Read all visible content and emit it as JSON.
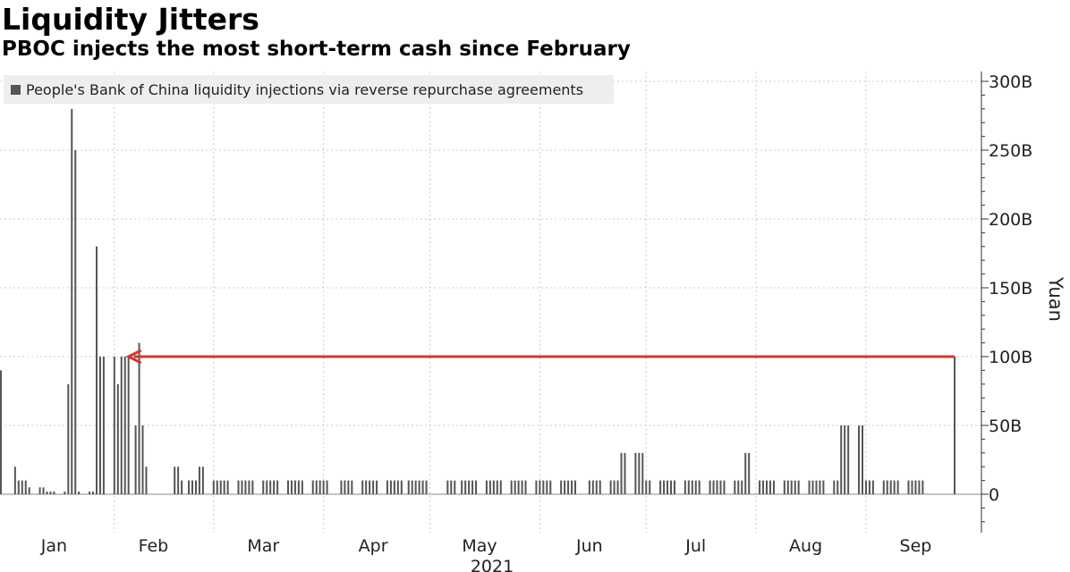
{
  "header": {
    "title": "Liquidity Jitters",
    "subtitle": "PBOC injects the most short-term cash since February"
  },
  "colors": {
    "bar": "#555555",
    "grid": "#cccccc",
    "annotation_arrow": "#d03a2f",
    "legend_bg": "#eeeeee"
  },
  "chart_data": {
    "type": "bar",
    "legend": [
      {
        "name": "People's Bank of China liquidity injections via reverse repurchase agreements",
        "placement": "top-left"
      }
    ],
    "ylabel": "Yuan",
    "xlabel": "2021",
    "y_axis_side": "right",
    "ylim": [
      -25,
      310
    ],
    "y_ticks": [
      0,
      50,
      100,
      150,
      200,
      250,
      300
    ],
    "y_tick_labels": [
      "0",
      "50B",
      "100B",
      "150B",
      "200B",
      "250B",
      "300B"
    ],
    "x_domain": [
      "2020-12-31",
      "2021-09-27"
    ],
    "x_ticks": [
      {
        "label": "Jan",
        "date": "2021-01-15"
      },
      {
        "label": "Feb",
        "date": "2021-02-12"
      },
      {
        "label": "Mar",
        "date": "2021-03-15"
      },
      {
        "label": "Apr",
        "date": "2021-04-15"
      },
      {
        "label": "May",
        "date": "2021-05-15"
      },
      {
        "label": "Jun",
        "date": "2021-06-15"
      },
      {
        "label": "Jul",
        "date": "2021-07-15"
      },
      {
        "label": "Aug",
        "date": "2021-08-15"
      },
      {
        "label": "Sep",
        "date": "2021-09-15"
      }
    ],
    "x_gridlines": [
      "2021-02-01",
      "2021-03-01",
      "2021-04-01",
      "2021-05-01",
      "2021-06-01",
      "2021-07-01",
      "2021-08-01",
      "2021-09-01"
    ],
    "grid": true,
    "annotation": {
      "type": "arrow",
      "y": 100,
      "from_date": "2021-09-26",
      "to_date": "2021-02-05"
    },
    "series": [
      {
        "name": "People's Bank of China liquidity injections via reverse repurchase agreements",
        "points": [
          [
            "2020-12-31",
            90
          ],
          [
            "2021-01-04",
            20
          ],
          [
            "2021-01-05",
            10
          ],
          [
            "2021-01-06",
            10
          ],
          [
            "2021-01-07",
            10
          ],
          [
            "2021-01-08",
            5
          ],
          [
            "2021-01-11",
            5
          ],
          [
            "2021-01-12",
            5
          ],
          [
            "2021-01-13",
            2
          ],
          [
            "2021-01-14",
            2
          ],
          [
            "2021-01-15",
            2
          ],
          [
            "2021-01-18",
            2
          ],
          [
            "2021-01-19",
            80
          ],
          [
            "2021-01-20",
            280
          ],
          [
            "2021-01-21",
            250
          ],
          [
            "2021-01-22",
            2
          ],
          [
            "2021-01-25",
            2
          ],
          [
            "2021-01-26",
            2
          ],
          [
            "2021-01-27",
            180
          ],
          [
            "2021-01-28",
            100
          ],
          [
            "2021-01-29",
            100
          ],
          [
            "2021-02-01",
            100
          ],
          [
            "2021-02-02",
            80
          ],
          [
            "2021-02-03",
            100
          ],
          [
            "2021-02-04",
            100
          ],
          [
            "2021-02-05",
            100
          ],
          [
            "2021-02-07",
            50
          ],
          [
            "2021-02-08",
            110
          ],
          [
            "2021-02-09",
            50
          ],
          [
            "2021-02-10",
            20
          ],
          [
            "2021-02-18",
            20
          ],
          [
            "2021-02-19",
            20
          ],
          [
            "2021-02-20",
            10
          ],
          [
            "2021-02-22",
            10
          ],
          [
            "2021-02-23",
            10
          ],
          [
            "2021-02-24",
            10
          ],
          [
            "2021-02-25",
            20
          ],
          [
            "2021-02-26",
            20
          ],
          [
            "2021-03-01",
            10
          ],
          [
            "2021-03-02",
            10
          ],
          [
            "2021-03-03",
            10
          ],
          [
            "2021-03-04",
            10
          ],
          [
            "2021-03-05",
            10
          ],
          [
            "2021-03-08",
            10
          ],
          [
            "2021-03-09",
            10
          ],
          [
            "2021-03-10",
            10
          ],
          [
            "2021-03-11",
            10
          ],
          [
            "2021-03-12",
            10
          ],
          [
            "2021-03-15",
            10
          ],
          [
            "2021-03-16",
            10
          ],
          [
            "2021-03-17",
            10
          ],
          [
            "2021-03-18",
            10
          ],
          [
            "2021-03-19",
            10
          ],
          [
            "2021-03-22",
            10
          ],
          [
            "2021-03-23",
            10
          ],
          [
            "2021-03-24",
            10
          ],
          [
            "2021-03-25",
            10
          ],
          [
            "2021-03-26",
            10
          ],
          [
            "2021-03-29",
            10
          ],
          [
            "2021-03-30",
            10
          ],
          [
            "2021-03-31",
            10
          ],
          [
            "2021-04-01",
            10
          ],
          [
            "2021-04-02",
            10
          ],
          [
            "2021-04-06",
            10
          ],
          [
            "2021-04-07",
            10
          ],
          [
            "2021-04-08",
            10
          ],
          [
            "2021-04-09",
            10
          ],
          [
            "2021-04-12",
            10
          ],
          [
            "2021-04-13",
            10
          ],
          [
            "2021-04-14",
            10
          ],
          [
            "2021-04-15",
            10
          ],
          [
            "2021-04-16",
            10
          ],
          [
            "2021-04-19",
            10
          ],
          [
            "2021-04-20",
            10
          ],
          [
            "2021-04-21",
            10
          ],
          [
            "2021-04-22",
            10
          ],
          [
            "2021-04-23",
            10
          ],
          [
            "2021-04-25",
            10
          ],
          [
            "2021-04-26",
            10
          ],
          [
            "2021-04-27",
            10
          ],
          [
            "2021-04-28",
            10
          ],
          [
            "2021-04-29",
            10
          ],
          [
            "2021-04-30",
            10
          ],
          [
            "2021-05-06",
            10
          ],
          [
            "2021-05-07",
            10
          ],
          [
            "2021-05-08",
            10
          ],
          [
            "2021-05-10",
            10
          ],
          [
            "2021-05-11",
            10
          ],
          [
            "2021-05-12",
            10
          ],
          [
            "2021-05-13",
            10
          ],
          [
            "2021-05-14",
            10
          ],
          [
            "2021-05-17",
            10
          ],
          [
            "2021-05-18",
            10
          ],
          [
            "2021-05-19",
            10
          ],
          [
            "2021-05-20",
            10
          ],
          [
            "2021-05-21",
            10
          ],
          [
            "2021-05-24",
            10
          ],
          [
            "2021-05-25",
            10
          ],
          [
            "2021-05-26",
            10
          ],
          [
            "2021-05-27",
            10
          ],
          [
            "2021-05-28",
            10
          ],
          [
            "2021-05-31",
            10
          ],
          [
            "2021-06-01",
            10
          ],
          [
            "2021-06-02",
            10
          ],
          [
            "2021-06-03",
            10
          ],
          [
            "2021-06-04",
            10
          ],
          [
            "2021-06-07",
            10
          ],
          [
            "2021-06-08",
            10
          ],
          [
            "2021-06-09",
            10
          ],
          [
            "2021-06-10",
            10
          ],
          [
            "2021-06-11",
            10
          ],
          [
            "2021-06-15",
            10
          ],
          [
            "2021-06-16",
            10
          ],
          [
            "2021-06-17",
            10
          ],
          [
            "2021-06-18",
            10
          ],
          [
            "2021-06-21",
            10
          ],
          [
            "2021-06-22",
            10
          ],
          [
            "2021-06-23",
            10
          ],
          [
            "2021-06-24",
            30
          ],
          [
            "2021-06-25",
            30
          ],
          [
            "2021-06-28",
            30
          ],
          [
            "2021-06-29",
            30
          ],
          [
            "2021-06-30",
            30
          ],
          [
            "2021-07-01",
            10
          ],
          [
            "2021-07-02",
            10
          ],
          [
            "2021-07-05",
            10
          ],
          [
            "2021-07-06",
            10
          ],
          [
            "2021-07-07",
            10
          ],
          [
            "2021-07-08",
            10
          ],
          [
            "2021-07-09",
            10
          ],
          [
            "2021-07-12",
            10
          ],
          [
            "2021-07-13",
            10
          ],
          [
            "2021-07-14",
            10
          ],
          [
            "2021-07-15",
            10
          ],
          [
            "2021-07-16",
            10
          ],
          [
            "2021-07-19",
            10
          ],
          [
            "2021-07-20",
            10
          ],
          [
            "2021-07-21",
            10
          ],
          [
            "2021-07-22",
            10
          ],
          [
            "2021-07-23",
            10
          ],
          [
            "2021-07-26",
            10
          ],
          [
            "2021-07-27",
            10
          ],
          [
            "2021-07-28",
            10
          ],
          [
            "2021-07-29",
            30
          ],
          [
            "2021-07-30",
            30
          ],
          [
            "2021-08-02",
            10
          ],
          [
            "2021-08-03",
            10
          ],
          [
            "2021-08-04",
            10
          ],
          [
            "2021-08-05",
            10
          ],
          [
            "2021-08-06",
            10
          ],
          [
            "2021-08-09",
            10
          ],
          [
            "2021-08-10",
            10
          ],
          [
            "2021-08-11",
            10
          ],
          [
            "2021-08-12",
            10
          ],
          [
            "2021-08-13",
            10
          ],
          [
            "2021-08-16",
            10
          ],
          [
            "2021-08-17",
            10
          ],
          [
            "2021-08-18",
            10
          ],
          [
            "2021-08-19",
            10
          ],
          [
            "2021-08-20",
            10
          ],
          [
            "2021-08-23",
            10
          ],
          [
            "2021-08-24",
            10
          ],
          [
            "2021-08-25",
            50
          ],
          [
            "2021-08-26",
            50
          ],
          [
            "2021-08-27",
            50
          ],
          [
            "2021-08-30",
            50
          ],
          [
            "2021-08-31",
            50
          ],
          [
            "2021-09-01",
            10
          ],
          [
            "2021-09-02",
            10
          ],
          [
            "2021-09-03",
            10
          ],
          [
            "2021-09-06",
            10
          ],
          [
            "2021-09-07",
            10
          ],
          [
            "2021-09-08",
            10
          ],
          [
            "2021-09-09",
            10
          ],
          [
            "2021-09-10",
            10
          ],
          [
            "2021-09-13",
            10
          ],
          [
            "2021-09-14",
            10
          ],
          [
            "2021-09-15",
            10
          ],
          [
            "2021-09-16",
            10
          ],
          [
            "2021-09-17",
            10
          ],
          [
            "2021-09-26",
            100
          ]
        ]
      }
    ]
  }
}
